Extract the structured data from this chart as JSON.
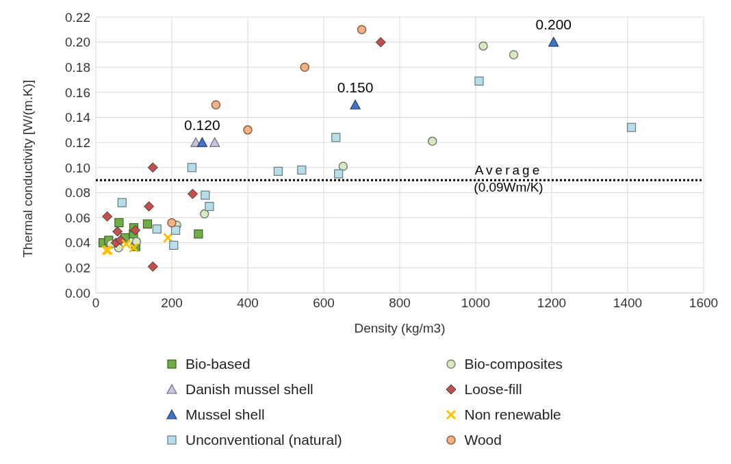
{
  "chart_data": {
    "type": "scatter",
    "xlabel": "Density (kg/m3)",
    "ylabel": "Thermal conductivity [W/(m.K)]",
    "xlim": [
      0,
      1600
    ],
    "xticks": [
      0,
      200,
      400,
      600,
      800,
      1000,
      1200,
      1400,
      1600
    ],
    "ylim": [
      0,
      0.22
    ],
    "yticks": [
      {
        "value": 0,
        "label": "0.00"
      },
      {
        "value": 0.02,
        "label": "0.02"
      },
      {
        "value": 0.04,
        "label": "0.04"
      },
      {
        "value": 0.06,
        "label": "0.06"
      },
      {
        "value": 0.08,
        "label": "0.08"
      },
      {
        "value": 0.1,
        "label": "0.10"
      },
      {
        "value": 0.12,
        "label": "0.12"
      },
      {
        "value": 0.14,
        "label": "0.14"
      },
      {
        "value": 0.16,
        "label": "0.16"
      },
      {
        "value": 0.18,
        "label": "0.18"
      },
      {
        "value": 0.2,
        "label": "0.20"
      },
      {
        "value": 0.22,
        "label": "0.22"
      }
    ],
    "grid": true,
    "legend": "bottom",
    "ref_lines": [
      {
        "axis": "y",
        "value": 0.09,
        "label": "Average (0.09Wm/K)",
        "color": "#000000",
        "line_style": "dotted"
      }
    ],
    "series": [
      {
        "name": "Bio-based",
        "color": "#70ad47",
        "marker": "square",
        "x": [
          19,
          34,
          61,
          77,
          99,
          100,
          105,
          136,
          270
        ],
        "values": [
          0.04,
          0.042,
          0.056,
          0.044,
          0.047,
          0.052,
          0.037,
          0.055,
          0.047
        ]
      },
      {
        "name": "Bio-composites",
        "color": "#d9e8c4",
        "marker": "circle",
        "x": [
          40,
          60,
          107,
          213,
          286,
          651,
          886,
          1020,
          1100
        ],
        "values": [
          0.039,
          0.036,
          0.041,
          0.054,
          0.063,
          0.101,
          0.121,
          0.197,
          0.19
        ]
      },
      {
        "name": "Danish mussel shell",
        "color": "#c9c4dc",
        "marker": "triangle",
        "x": [
          263,
          313
        ],
        "values": [
          0.12,
          0.12
        ]
      },
      {
        "name": "Loose-fill",
        "color": "#c0504d",
        "marker": "diamond",
        "x": [
          30,
          53,
          57,
          65,
          104,
          140,
          150,
          150,
          255,
          750
        ],
        "values": [
          0.061,
          0.04,
          0.049,
          0.042,
          0.05,
          0.069,
          0.1,
          0.021,
          0.079,
          0.2
        ]
      },
      {
        "name": "Mussel shell",
        "color": "#4472c4",
        "marker": "triangle",
        "x": [
          280,
          683,
          1205
        ],
        "values": [
          0.12,
          0.15,
          0.2
        ],
        "value_labels": [
          "0.120",
          "0.150",
          "0.200"
        ]
      },
      {
        "name": "Non renewable",
        "color": "#ffc000",
        "marker": "cross",
        "x": [
          28,
          32,
          80,
          100,
          190
        ],
        "values": [
          0.034,
          0.034,
          0.039,
          0.036,
          0.044
        ]
      },
      {
        "name": "Unconventional (natural)",
        "color": "#b7dde8",
        "marker": "square",
        "x": [
          69,
          161,
          205,
          210,
          253,
          288,
          299,
          480,
          542,
          632,
          639,
          1009,
          1410
        ],
        "values": [
          0.072,
          0.051,
          0.038,
          0.05,
          0.1,
          0.078,
          0.069,
          0.097,
          0.098,
          0.124,
          0.095,
          0.169,
          0.132
        ]
      },
      {
        "name": "Wood",
        "color": "#f4b183",
        "marker": "circle",
        "x": [
          200,
          316,
          400,
          550,
          700
        ],
        "values": [
          0.056,
          0.15,
          0.13,
          0.18,
          0.21
        ]
      }
    ]
  }
}
